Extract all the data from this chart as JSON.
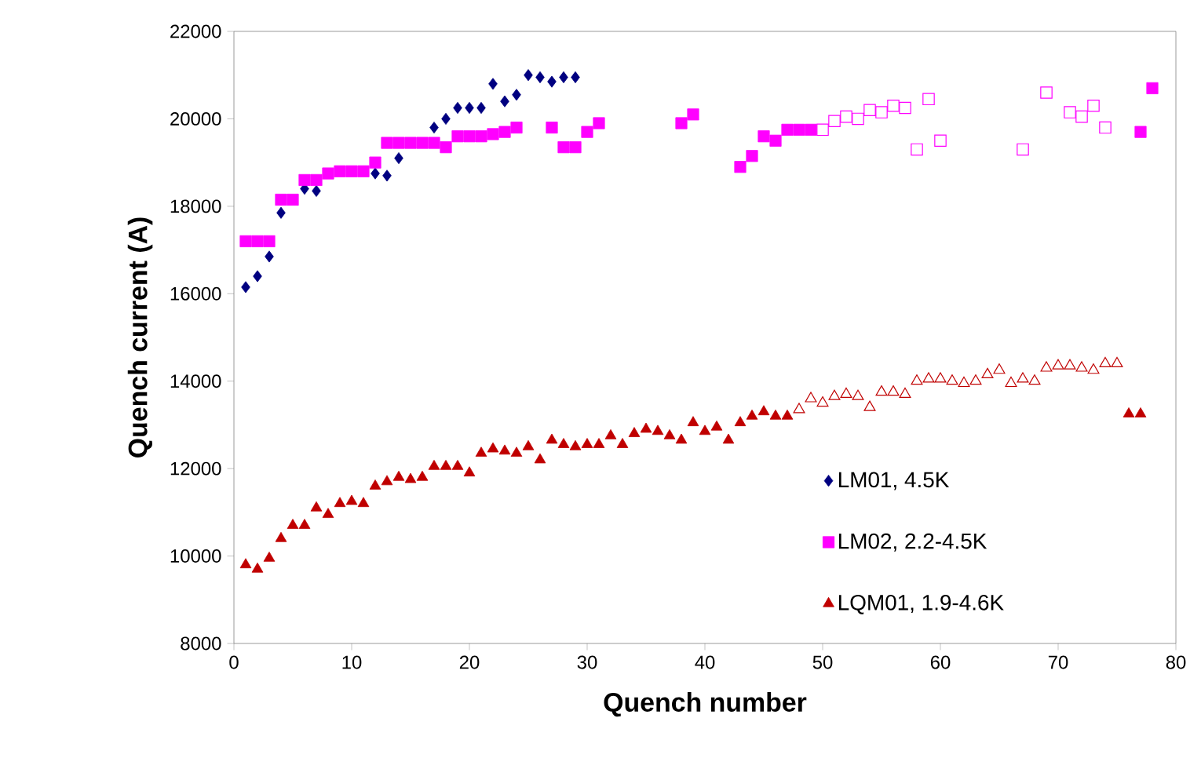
{
  "chart_data": {
    "type": "scatter",
    "xlabel": "Quench number",
    "ylabel": "Quench current (A)",
    "xlim": [
      0,
      80
    ],
    "ylim": [
      8000,
      22000
    ],
    "xticks": [
      0,
      10,
      20,
      30,
      40,
      50,
      60,
      70,
      80
    ],
    "yticks": [
      8000,
      10000,
      12000,
      14000,
      16000,
      18000,
      20000,
      22000
    ],
    "legend": "bottom right",
    "series": [
      {
        "name": "LM01, 4.5K",
        "color": "#000080",
        "marker": "diamond",
        "x": [
          1,
          2,
          3,
          4,
          5,
          6,
          7,
          8,
          9,
          10,
          11,
          12,
          13,
          14,
          15,
          16,
          17,
          18,
          19,
          20,
          21,
          22,
          23,
          24,
          25,
          26,
          27,
          28,
          29
        ],
        "values": [
          16150,
          16400,
          16850,
          17850,
          null,
          18400,
          18350,
          null,
          null,
          null,
          null,
          18750,
          18700,
          19100,
          null,
          null,
          19800,
          20000,
          20250,
          20250,
          20250,
          20800,
          20400,
          20550,
          21000,
          20950,
          20850,
          20950,
          20950
        ]
      },
      {
        "name": "LM02, 2.2-4.5K",
        "color": "#ff00ff",
        "marker": "square",
        "x": [
          1,
          2,
          3,
          4,
          5,
          6,
          7,
          8,
          9,
          10,
          11,
          12,
          13,
          14,
          15,
          16,
          17,
          18,
          19,
          20,
          21,
          22,
          23,
          24,
          27,
          28,
          29,
          30,
          31,
          38,
          39,
          43,
          44,
          45,
          46,
          47,
          48,
          49,
          77,
          78
        ],
        "values": [
          17200,
          17200,
          17200,
          18150,
          18150,
          18600,
          18600,
          18750,
          18800,
          18800,
          18800,
          19000,
          19450,
          19450,
          19450,
          19450,
          19450,
          19350,
          19600,
          19600,
          19600,
          19650,
          19700,
          19800,
          19800,
          19350,
          19350,
          19700,
          19900,
          19900,
          20100,
          18900,
          19150,
          19600,
          19500,
          19750,
          19750,
          19750,
          19700,
          20700
        ]
      },
      {
        "color": "#ff00ff",
        "marker": "square",
        "x": [
          50,
          51,
          52,
          53,
          54,
          55,
          56,
          57,
          58,
          59,
          60,
          67,
          69,
          71,
          72,
          73,
          74
        ],
        "values": [
          19750,
          19950,
          20050,
          20000,
          20200,
          20150,
          20300,
          20250,
          19300,
          20450,
          19500,
          19300,
          20600,
          20150,
          20050,
          20300,
          19800
        ]
      },
      {
        "name": "LQM01, 1.9-4.6K",
        "color": "#c00000",
        "marker": "triangle",
        "x": [
          1,
          2,
          3,
          4,
          5,
          6,
          7,
          8,
          9,
          10,
          11,
          12,
          13,
          14,
          15,
          16,
          17,
          18,
          19,
          20,
          21,
          22,
          23,
          24,
          25,
          26,
          27,
          28,
          29,
          30,
          31,
          32,
          33,
          34,
          35,
          36,
          37,
          38,
          39,
          40,
          41,
          42,
          43,
          44,
          45,
          46,
          47,
          76,
          77
        ],
        "values": [
          9800,
          9700,
          9950,
          10400,
          10700,
          10700,
          11100,
          10950,
          11200,
          11250,
          11200,
          11600,
          11700,
          11800,
          11750,
          11800,
          12050,
          12050,
          12050,
          11900,
          12350,
          12450,
          12400,
          12350,
          12500,
          12200,
          12650,
          12550,
          12500,
          12550,
          12550,
          12750,
          12550,
          12800,
          12900,
          12850,
          12750,
          12650,
          13050,
          12850,
          12950,
          12650,
          13050,
          13200,
          13300,
          13200,
          13200,
          13250,
          13250
        ]
      },
      {
        "color": "#c00000",
        "marker": "triangle",
        "x": [
          48,
          49,
          50,
          51,
          52,
          53,
          54,
          55,
          56,
          57,
          58,
          59,
          60,
          61,
          62,
          63,
          64,
          65,
          66,
          67,
          68,
          69,
          70,
          71,
          72,
          73,
          74,
          75
        ],
        "values": [
          13350,
          13600,
          13500,
          13650,
          13700,
          13650,
          13400,
          13750,
          13750,
          13700,
          14000,
          14050,
          14050,
          14000,
          13950,
          14000,
          14150,
          14250,
          13950,
          14050,
          14000,
          14300,
          14350,
          14350,
          14300,
          14250,
          14400,
          14400
        ]
      }
    ]
  }
}
